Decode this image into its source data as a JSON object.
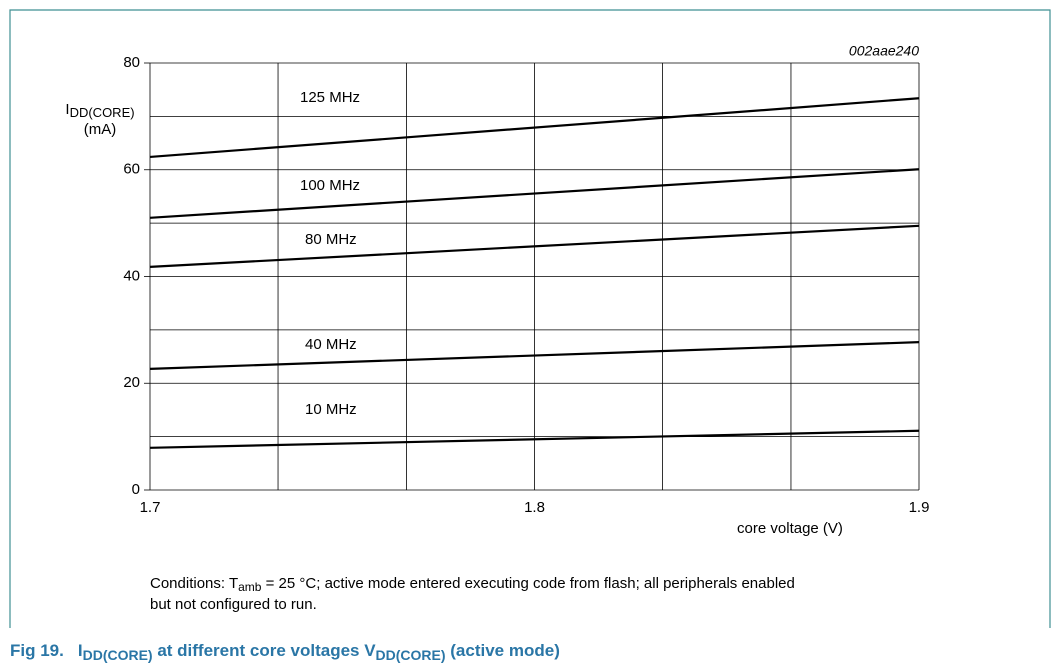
{
  "chart_data": {
    "type": "line",
    "code": "002aae240",
    "y_label": {
      "main": "I",
      "sub": "DD(CORE)",
      "unit": "(mA)"
    },
    "x_label": "core voltage  (V)",
    "x": [
      1.7,
      1.9
    ],
    "series": [
      {
        "name": "125 MHz",
        "color": "#000000",
        "values": [
          62.4,
          73.4
        ]
      },
      {
        "name": "100 MHz",
        "color": "#000000",
        "values": [
          51,
          60.1
        ]
      },
      {
        "name": "80 MHz",
        "color": "#000000",
        "values": [
          41.8,
          49.5
        ]
      },
      {
        "name": "40 MHz",
        "color": "#000000",
        "values": [
          22.7,
          27.7
        ]
      },
      {
        "name": "10 MHz",
        "color": "#000000",
        "values": [
          7.9,
          11.1
        ]
      }
    ],
    "xlim": [
      1.7,
      1.9
    ],
    "ylim": [
      0,
      80
    ],
    "xticks": [
      1.7,
      1.8,
      1.9
    ],
    "yticks": [
      0,
      20,
      40,
      60,
      80
    ],
    "xgrid": [
      1.7,
      1.7333,
      1.7667,
      1.8,
      1.8333,
      1.8667,
      1.9
    ],
    "ygrid": [
      0,
      10,
      20,
      30,
      40,
      50,
      60,
      70,
      80
    ],
    "grid": true
  },
  "conditions": {
    "pre": "Conditions: T",
    "sub": "amb",
    "post": " = 25 °C; active mode entered executing code from flash; all peripherals enabled",
    "line2": "but not configured to run."
  },
  "caption": {
    "number": "Fig 19.",
    "p1": "I",
    "s1": "DD(CORE)",
    "p2": " at different core voltages V",
    "s2": "DD(CORE)",
    "p3": " (active mode)"
  }
}
